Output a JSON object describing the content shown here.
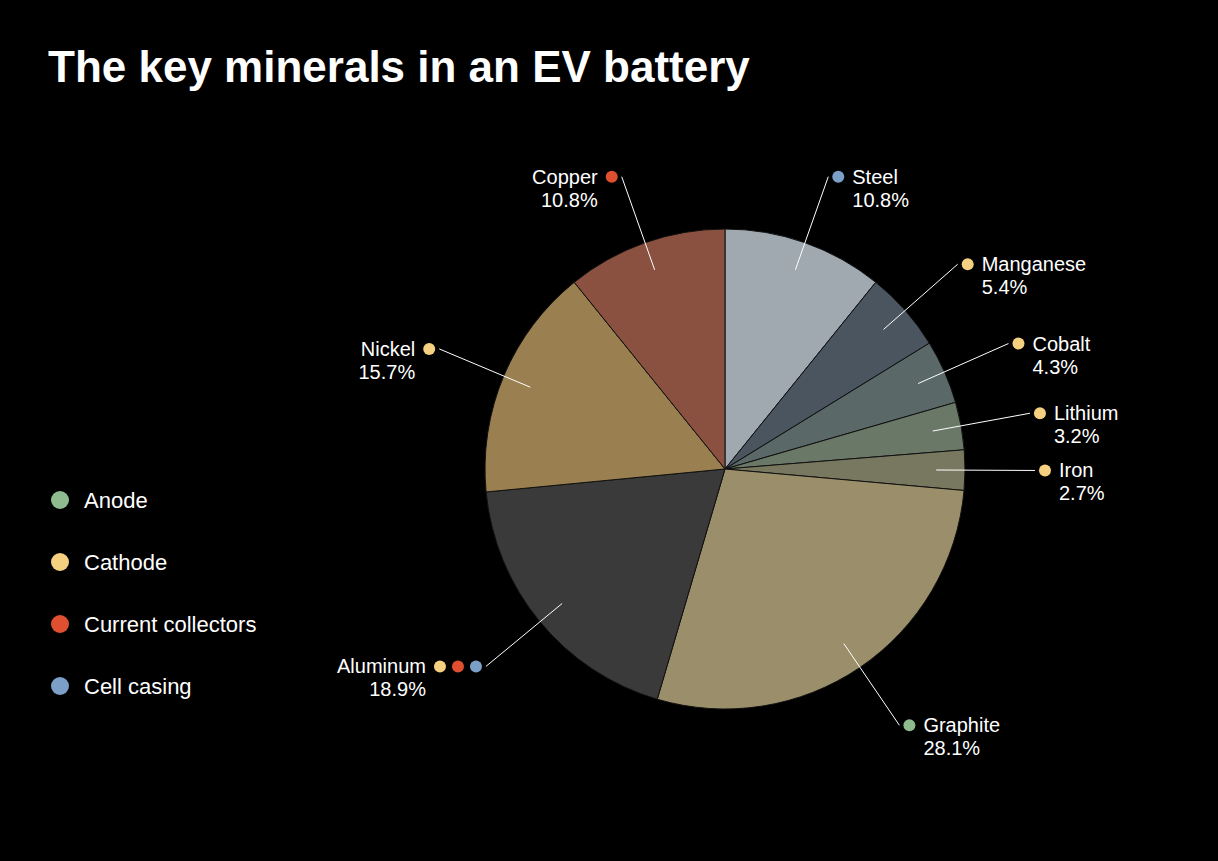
{
  "chart_data": {
    "type": "pie",
    "title": "The key minerals in an EV battery",
    "categories": [
      "Steel",
      "Manganese",
      "Cobalt",
      "Lithium",
      "Iron",
      "Graphite",
      "Aluminum",
      "Nickel",
      "Copper"
    ],
    "values": [
      10.8,
      5.4,
      4.3,
      3.2,
      2.7,
      28.1,
      18.9,
      15.7,
      10.8
    ],
    "value_labels": [
      "10.8%",
      "5.4%",
      "4.3%",
      "3.2%",
      "2.7%",
      "28.1%",
      "18.9%",
      "15.7%",
      "10.8%"
    ],
    "colors": [
      "#a0a8b0",
      "#4a5560",
      "#5a6868",
      "#6a7868",
      "#787860",
      "#9a8f6a",
      "#3a3a3a",
      "#9a8050",
      "#8a5040"
    ],
    "data_labels": true,
    "category_groups": [
      [
        "Cell casing"
      ],
      [
        "Cathode"
      ],
      [
        "Cathode"
      ],
      [
        "Cathode"
      ],
      [
        "Cathode"
      ],
      [
        "Anode"
      ],
      [
        "Cell casing",
        "Current collectors",
        "Cathode"
      ],
      [
        "Cathode"
      ],
      [
        "Current collectors"
      ]
    ],
    "legend": "lower left",
    "legend_entries": [
      {
        "name": "Anode",
        "color": "#8fbc8f"
      },
      {
        "name": "Cathode",
        "color": "#f5d080"
      },
      {
        "name": "Current collectors",
        "color": "#e05030"
      },
      {
        "name": "Cell casing",
        "color": "#7b9fc7"
      }
    ]
  }
}
